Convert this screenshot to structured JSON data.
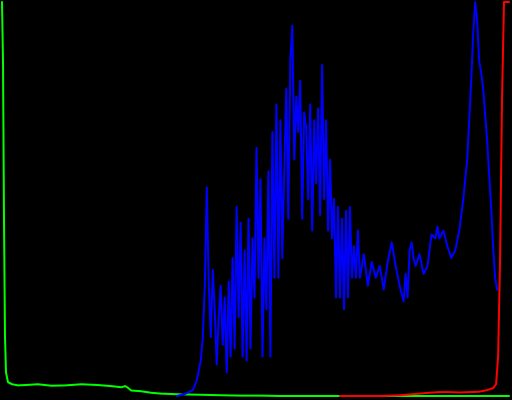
{
  "chart_data": {
    "type": "line",
    "title": "",
    "xlabel": "",
    "ylabel": "",
    "xlim": [
      0,
      255
    ],
    "ylim": [
      0,
      1
    ],
    "grid": false,
    "legend": "none",
    "background": "#000000",
    "series": [
      {
        "color": "#00ff00",
        "points": [
          [
            0.0,
            1.0
          ],
          [
            0.5,
            0.85
          ],
          [
            1.0,
            0.45
          ],
          [
            1.5,
            0.15
          ],
          [
            2.0,
            0.06
          ],
          [
            3.0,
            0.035
          ],
          [
            5.0,
            0.03
          ],
          [
            8.0,
            0.027
          ],
          [
            12.0,
            0.028
          ],
          [
            18.0,
            0.03
          ],
          [
            25.0,
            0.026
          ],
          [
            32.0,
            0.027
          ],
          [
            40.0,
            0.03
          ],
          [
            48.0,
            0.028
          ],
          [
            55.0,
            0.025
          ],
          [
            60.0,
            0.022
          ],
          [
            62.0,
            0.025
          ],
          [
            63.5,
            0.02
          ],
          [
            65.0,
            0.014
          ],
          [
            70.0,
            0.012
          ],
          [
            75.0,
            0.008
          ],
          [
            80.0,
            0.006
          ],
          [
            90.0,
            0.004
          ],
          [
            100.0,
            0.003
          ],
          [
            110.0,
            0.002
          ],
          [
            120.0,
            0.001
          ],
          [
            130.0,
            0.001
          ],
          [
            140.0,
            0.0
          ],
          [
            160.0,
            0.0
          ],
          [
            180.0,
            0.0
          ],
          [
            200.0,
            0.0
          ],
          [
            220.0,
            0.0
          ],
          [
            240.0,
            0.0
          ],
          [
            255.0,
            0.0
          ]
        ]
      },
      {
        "color": "#0000ff",
        "points": [
          [
            88.0,
            0.0
          ],
          [
            92.0,
            0.005
          ],
          [
            96.0,
            0.015
          ],
          [
            98.0,
            0.04
          ],
          [
            100.0,
            0.09
          ],
          [
            101.0,
            0.15
          ],
          [
            102.0,
            0.28
          ],
          [
            103.0,
            0.53
          ],
          [
            104.0,
            0.28
          ],
          [
            105.0,
            0.15
          ],
          [
            106.0,
            0.32
          ],
          [
            107.0,
            0.22
          ],
          [
            108.0,
            0.08
          ],
          [
            109.0,
            0.2
          ],
          [
            110.0,
            0.28
          ],
          [
            111.0,
            0.13
          ],
          [
            112.0,
            0.25
          ],
          [
            113.0,
            0.06
          ],
          [
            114.0,
            0.29
          ],
          [
            115.0,
            0.1
          ],
          [
            116.0,
            0.35
          ],
          [
            117.0,
            0.12
          ],
          [
            118.0,
            0.48
          ],
          [
            119.0,
            0.2
          ],
          [
            120.0,
            0.44
          ],
          [
            121.0,
            0.1
          ],
          [
            122.0,
            0.37
          ],
          [
            123.0,
            0.09
          ],
          [
            124.0,
            0.45
          ],
          [
            125.0,
            0.12
          ],
          [
            126.0,
            0.4
          ],
          [
            127.0,
            0.25
          ],
          [
            128.0,
            0.63
          ],
          [
            129.0,
            0.3
          ],
          [
            130.0,
            0.55
          ],
          [
            131.0,
            0.1
          ],
          [
            132.0,
            0.4
          ],
          [
            133.0,
            0.22
          ],
          [
            134.0,
            0.57
          ],
          [
            135.0,
            0.1
          ],
          [
            136.0,
            0.67
          ],
          [
            137.0,
            0.3
          ],
          [
            138.0,
            0.74
          ],
          [
            139.0,
            0.3
          ],
          [
            140.0,
            0.7
          ],
          [
            141.0,
            0.35
          ],
          [
            142.0,
            0.58
          ],
          [
            143.0,
            0.78
          ],
          [
            144.0,
            0.45
          ],
          [
            145.0,
            0.85
          ],
          [
            146.0,
            0.94
          ],
          [
            147.0,
            0.6
          ],
          [
            148.0,
            0.76
          ],
          [
            149.0,
            0.67
          ],
          [
            150.0,
            0.8
          ],
          [
            151.0,
            0.45
          ],
          [
            152.0,
            0.72
          ],
          [
            153.0,
            0.68
          ],
          [
            154.0,
            0.5
          ],
          [
            155.0,
            0.74
          ],
          [
            156.0,
            0.42
          ],
          [
            157.0,
            0.7
          ],
          [
            158.0,
            0.54
          ],
          [
            159.0,
            0.73
          ],
          [
            160.0,
            0.46
          ],
          [
            161.0,
            0.84
          ],
          [
            162.0,
            0.5
          ],
          [
            163.0,
            0.7
          ],
          [
            164.0,
            0.42
          ],
          [
            165.0,
            0.6
          ],
          [
            166.0,
            0.4
          ],
          [
            167.0,
            0.5
          ],
          [
            168.0,
            0.25
          ],
          [
            169.0,
            0.48
          ],
          [
            170.0,
            0.25
          ],
          [
            171.0,
            0.45
          ],
          [
            172.0,
            0.22
          ],
          [
            173.0,
            0.47
          ],
          [
            174.0,
            0.25
          ],
          [
            175.0,
            0.48
          ],
          [
            176.0,
            0.3
          ],
          [
            177.0,
            0.38
          ],
          [
            178.0,
            0.3
          ],
          [
            179.0,
            0.42
          ],
          [
            180.0,
            0.3
          ],
          [
            182.0,
            0.36
          ],
          [
            184.0,
            0.28
          ],
          [
            186.0,
            0.34
          ],
          [
            188.0,
            0.3
          ],
          [
            190.0,
            0.33
          ],
          [
            192.0,
            0.27
          ],
          [
            194.0,
            0.34
          ],
          [
            196.0,
            0.39
          ],
          [
            198.0,
            0.33
          ],
          [
            200.0,
            0.28
          ],
          [
            202.0,
            0.24
          ],
          [
            203.0,
            0.31
          ],
          [
            204.0,
            0.25
          ],
          [
            205.0,
            0.37
          ],
          [
            206.0,
            0.39
          ],
          [
            207.0,
            0.35
          ],
          [
            208.0,
            0.33
          ],
          [
            210.0,
            0.36
          ],
          [
            212.0,
            0.31
          ],
          [
            214.0,
            0.33
          ],
          [
            216.0,
            0.41
          ],
          [
            218.0,
            0.4
          ],
          [
            219.0,
            0.43
          ],
          [
            220.0,
            0.4
          ],
          [
            222.0,
            0.42
          ],
          [
            224.0,
            0.38
          ],
          [
            226.0,
            0.35
          ],
          [
            228.0,
            0.37
          ],
          [
            230.0,
            0.42
          ],
          [
            232.0,
            0.5
          ],
          [
            234.0,
            0.6
          ],
          [
            236.0,
            0.8
          ],
          [
            237.0,
            0.92
          ],
          [
            238.0,
            1.0
          ],
          [
            239.0,
            0.95
          ],
          [
            240.0,
            0.85
          ],
          [
            241.0,
            0.82
          ],
          [
            242.0,
            0.78
          ],
          [
            244.0,
            0.65
          ],
          [
            246.0,
            0.48
          ],
          [
            247.0,
            0.38
          ],
          [
            248.0,
            0.3
          ],
          [
            249.0,
            0.27
          ]
        ]
      },
      {
        "color": "#ff0000",
        "points": [
          [
            170.0,
            0.0
          ],
          [
            190.0,
            0.0
          ],
          [
            200.0,
            0.002
          ],
          [
            210.0,
            0.006
          ],
          [
            215.0,
            0.008
          ],
          [
            220.0,
            0.01
          ],
          [
            225.0,
            0.01
          ],
          [
            230.0,
            0.009
          ],
          [
            235.0,
            0.01
          ],
          [
            240.0,
            0.011
          ],
          [
            244.0,
            0.015
          ],
          [
            247.0,
            0.02
          ],
          [
            248.5,
            0.03
          ],
          [
            249.5,
            0.1
          ],
          [
            250.5,
            0.35
          ],
          [
            251.5,
            0.75
          ],
          [
            252.5,
            1.0
          ],
          [
            253.5,
            1.0
          ],
          [
            255.0,
            1.0
          ]
        ]
      }
    ]
  }
}
